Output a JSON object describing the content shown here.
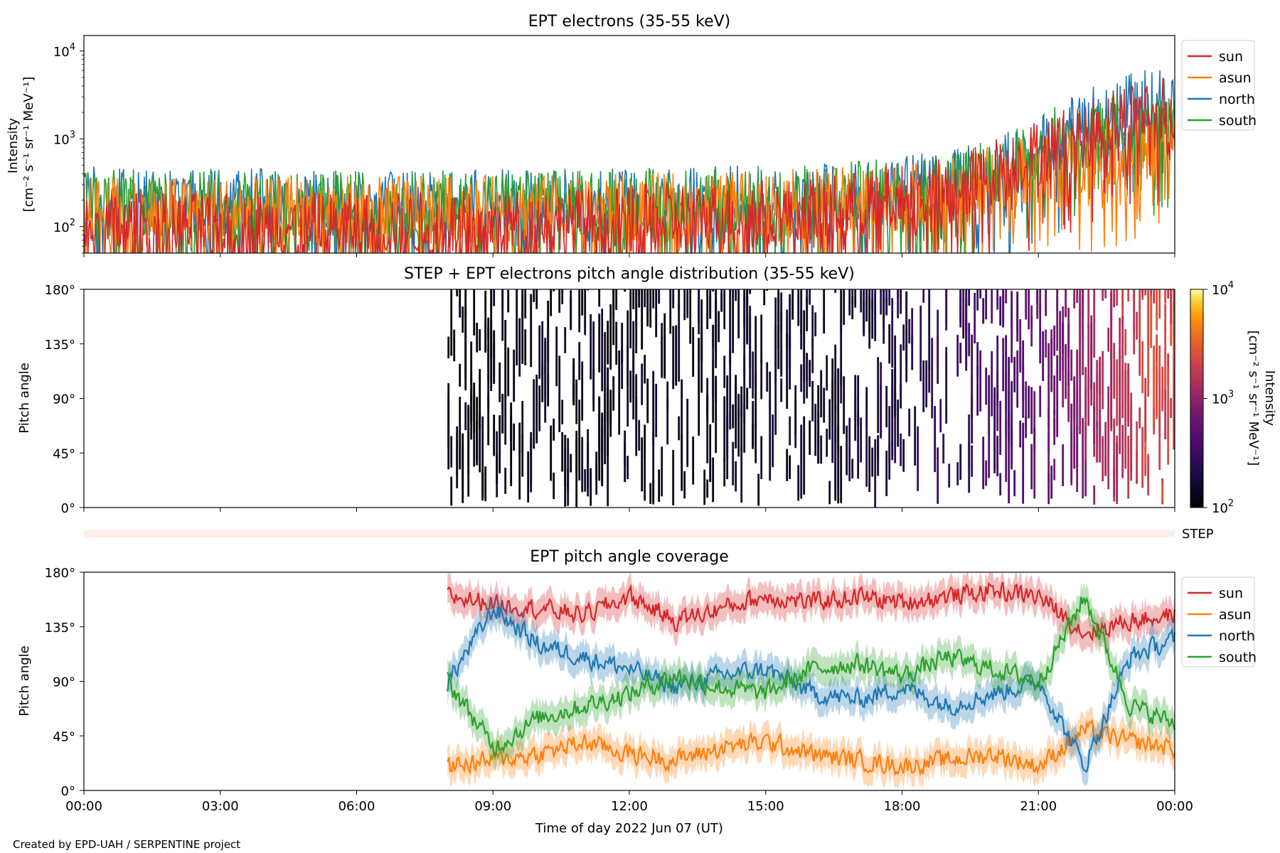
{
  "footer": "Created by EPD-UAH / SERPENTINE project",
  "xlabel": "Time of day 2022 Jun 07 (UT)",
  "x_ticks": [
    "00:00",
    "03:00",
    "06:00",
    "09:00",
    "12:00",
    "15:00",
    "18:00",
    "21:00",
    "00:00"
  ],
  "step_label": "STEP",
  "colors": {
    "sun": "#d62728",
    "asun": "#ff7f0e",
    "north": "#1f77b4",
    "south": "#2ca02c"
  },
  "chart_data": [
    {
      "type": "line",
      "title": "EPT electrons (35-55 keV)",
      "ylabel_line1": "Intensity",
      "ylabel_line2": "[cm⁻² s⁻¹ sr⁻¹ MeV⁻¹]",
      "yscale": "log",
      "ylim": [
        50,
        15000
      ],
      "y_ticks": [
        {
          "value": 100,
          "base": "10",
          "exp": "2"
        },
        {
          "value": 1000,
          "base": "10",
          "exp": "3"
        },
        {
          "value": 10000,
          "base": "10",
          "exp": "4"
        }
      ],
      "xlim_hours": [
        0,
        24
      ],
      "legend": [
        "sun",
        "asun",
        "north",
        "south"
      ],
      "legend_location": "outside-right",
      "series": [
        {
          "name": "sun",
          "color": "#d62728",
          "x_hours": [
            0,
            2,
            4,
            6,
            8,
            10,
            12,
            14,
            16,
            17,
            18,
            19,
            19.5,
            20,
            20.5,
            21,
            21.5,
            22,
            22.5,
            23,
            23.5,
            24
          ],
          "values": [
            100,
            100,
            100,
            100,
            105,
            110,
            120,
            135,
            150,
            175,
            210,
            260,
            320,
            420,
            550,
            700,
            900,
            1150,
            1500,
            1900,
            2200,
            2000
          ]
        },
        {
          "name": "asun",
          "color": "#ff7f0e",
          "x_hours": [
            0,
            2,
            4,
            6,
            8,
            10,
            12,
            14,
            16,
            17,
            18,
            19,
            19.5,
            20,
            20.5,
            21,
            21.5,
            22,
            22.5,
            23,
            23.5,
            24
          ],
          "values": [
            150,
            150,
            150,
            155,
            155,
            160,
            165,
            175,
            190,
            200,
            220,
            250,
            290,
            340,
            400,
            450,
            500,
            600,
            700,
            750,
            850,
            800
          ]
        },
        {
          "name": "north",
          "color": "#1f77b4",
          "x_hours": [
            0,
            2,
            4,
            6,
            8,
            10,
            12,
            14,
            16,
            17,
            18,
            19,
            19.5,
            20,
            20.5,
            21,
            21.5,
            22,
            22.5,
            23,
            23.5,
            24
          ],
          "values": [
            200,
            190,
            185,
            180,
            180,
            185,
            190,
            200,
            210,
            230,
            260,
            300,
            350,
            420,
            520,
            700,
            1000,
            1500,
            2000,
            2500,
            2700,
            2000
          ]
        },
        {
          "name": "south",
          "color": "#2ca02c",
          "x_hours": [
            0,
            2,
            4,
            6,
            8,
            10,
            12,
            14,
            16,
            17,
            18,
            19,
            19.5,
            20,
            20.5,
            21,
            21.5,
            22,
            22.5,
            23,
            23.5,
            24
          ],
          "values": [
            190,
            185,
            180,
            180,
            180,
            185,
            190,
            200,
            210,
            230,
            260,
            300,
            350,
            450,
            600,
            800,
            1000,
            1200,
            1300,
            1300,
            1300,
            1200
          ]
        }
      ]
    },
    {
      "type": "heatmap",
      "title": "STEP + EPT electrons pitch angle distribution (35-55 keV)",
      "ylabel": "Pitch angle",
      "ylim": [
        0,
        180
      ],
      "y_ticks": [
        "0°",
        "45°",
        "90°",
        "135°",
        "180°"
      ],
      "xlim_hours": [
        0,
        24
      ],
      "data_start_hour": 8,
      "colormap": "inferno",
      "colorbar": {
        "label_line1": "Intensity",
        "label_line2": "[cm⁻² s⁻¹ sr⁻¹ MeV⁻¹]",
        "scale": "log",
        "range": [
          100,
          10000
        ],
        "ticks": [
          {
            "value": 100,
            "base": "10",
            "exp": "2"
          },
          {
            "value": 1000,
            "base": "10",
            "exp": "3"
          },
          {
            "value": 10000,
            "base": "10",
            "exp": "4"
          }
        ]
      },
      "intensity_trend": {
        "x_hours": [
          8,
          12,
          16,
          18,
          19.5,
          20.5,
          21.5,
          22.5,
          23.5,
          24
        ],
        "values": [
          110,
          130,
          150,
          200,
          300,
          450,
          700,
          1300,
          2200,
          2000
        ]
      }
    },
    {
      "type": "line",
      "title": "EPT pitch angle coverage",
      "ylabel": "Pitch angle",
      "ylim": [
        0,
        180
      ],
      "y_ticks": [
        "0°",
        "45°",
        "90°",
        "135°",
        "180°"
      ],
      "xlim_hours": [
        0,
        24
      ],
      "data_start_hour": 8,
      "legend": [
        "sun",
        "asun",
        "north",
        "south"
      ],
      "legend_location": "outside-right",
      "series": [
        {
          "name": "sun",
          "color": "#d62728",
          "x_hours": [
            8,
            9,
            10,
            11,
            12,
            13,
            14,
            15,
            16,
            17,
            18,
            19,
            20,
            21,
            22,
            23,
            24
          ],
          "values": [
            160,
            155,
            150,
            145,
            160,
            140,
            150,
            160,
            155,
            160,
            155,
            160,
            165,
            160,
            130,
            140,
            145
          ]
        },
        {
          "name": "asun",
          "color": "#ff7f0e",
          "x_hours": [
            8,
            9,
            10,
            11,
            12,
            13,
            14,
            15,
            16,
            17,
            18,
            19,
            20,
            21,
            22,
            23,
            24
          ],
          "values": [
            20,
            25,
            30,
            40,
            30,
            25,
            35,
            40,
            30,
            25,
            20,
            25,
            30,
            20,
            50,
            40,
            35
          ]
        },
        {
          "name": "north",
          "color": "#1f77b4",
          "x_hours": [
            8,
            9,
            10,
            11,
            12,
            13,
            14,
            15,
            16,
            17,
            18,
            19,
            20,
            21,
            22,
            23,
            24
          ],
          "values": [
            90,
            150,
            120,
            110,
            100,
            85,
            95,
            100,
            80,
            75,
            85,
            70,
            80,
            90,
            20,
            110,
            125
          ]
        },
        {
          "name": "south",
          "color": "#2ca02c",
          "x_hours": [
            8,
            9,
            10,
            11,
            12,
            13,
            14,
            15,
            16,
            17,
            18,
            19,
            20,
            21,
            22,
            23,
            24
          ],
          "values": [
            90,
            35,
            60,
            70,
            80,
            95,
            85,
            80,
            100,
            105,
            95,
            110,
            100,
            90,
            160,
            70,
            55
          ]
        }
      ]
    }
  ]
}
